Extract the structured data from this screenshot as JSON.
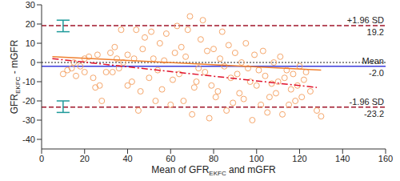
{
  "chart_data": {
    "type": "scatter",
    "xlabel": "Mean of GFREKFC and mGFR",
    "xlabel_parts": {
      "base": "Mean of GFR",
      "sub": "EKFC",
      "rest": " and mGFR"
    },
    "ylabel_parts": {
      "base": "GFR",
      "sub": "EKFC",
      "rest": " - mGFR"
    },
    "x": [
      10,
      12,
      14,
      16,
      18,
      20,
      22,
      24,
      25,
      27,
      28,
      30,
      32,
      34,
      35,
      36,
      38,
      40,
      42,
      44,
      45,
      46,
      47,
      48,
      50,
      52,
      54,
      55,
      56,
      58,
      60,
      62,
      64,
      65,
      66,
      68,
      69,
      70,
      72,
      74,
      75,
      76,
      78,
      80,
      82,
      84,
      85,
      86,
      88,
      90,
      92,
      94,
      95,
      96,
      98,
      100,
      102,
      104,
      106,
      108,
      110,
      112,
      114,
      116,
      118,
      120,
      122,
      125,
      128,
      130,
      15,
      20,
      26,
      33,
      37,
      40,
      43,
      51,
      53,
      57,
      61,
      63,
      67,
      71,
      73,
      77,
      79,
      81,
      83,
      87,
      89,
      91,
      93,
      97,
      99,
      101,
      103,
      105,
      107,
      109,
      111,
      113,
      115,
      117,
      119,
      121,
      123
    ],
    "values": [
      -6,
      -4,
      -3,
      -7,
      -2,
      -5,
      3,
      -8,
      -13,
      -12,
      -20,
      -5,
      5,
      8,
      2,
      -3,
      0,
      4,
      -10,
      17,
      -25,
      -15,
      7,
      13,
      -8,
      2,
      -4,
      10,
      -14,
      15,
      -22,
      5,
      -6,
      8,
      -20,
      17,
      24,
      -27,
      -10,
      12,
      22,
      -5,
      -29,
      7,
      -15,
      16,
      -2,
      -25,
      -8,
      5,
      -16,
      -19,
      10,
      -3,
      -30,
      -12,
      -22,
      -7,
      -18,
      0,
      -10,
      -27,
      -4,
      -14,
      -20,
      -2,
      -9,
      -15,
      -25,
      -28,
      0,
      2,
      4,
      -5,
      17,
      -12,
      2,
      16,
      -20,
      1,
      -9,
      19,
      3,
      -13,
      -3,
      6,
      -12,
      -18,
      2,
      9,
      -21,
      -6,
      0,
      -10,
      4,
      -4,
      6,
      -26,
      -11,
      -16,
      3,
      -8,
      -22,
      -6,
      -12,
      -18,
      -5
    ],
    "color": "#f5a66b",
    "marker": "hollow circle",
    "xlim": [
      0,
      160
    ],
    "xticks": [
      0,
      20,
      40,
      60,
      80,
      100,
      120,
      140,
      160
    ],
    "ylim": [
      -45,
      30
    ],
    "yticks": [
      -40,
      -30,
      -20,
      -10,
      0,
      10,
      20,
      30
    ],
    "reference_lines": [
      {
        "value": 19.2,
        "label": "+1.96 SD",
        "value_label": "19.2",
        "color": "#a0162a",
        "line_style": "dashed"
      },
      {
        "value": 0,
        "color": "#222222",
        "line_style": "dotted"
      },
      {
        "value": -2.0,
        "label": "Mean",
        "value_label": "-2.0",
        "color": "#3a3adc",
        "line_style": "solid"
      },
      {
        "value": -23.2,
        "label": "-1.96 SD",
        "value_label": "-23.2",
        "color": "#a0162a",
        "line_style": "dashed"
      }
    ],
    "fit_lines": [
      {
        "x": [
          5,
          130
        ],
        "values": [
          3,
          -4
        ],
        "color": "#f08030",
        "line_style": "solid"
      },
      {
        "x": [
          5,
          128
        ],
        "values": [
          2,
          -13
        ],
        "color": "#e0102a",
        "line_style": "dashdot"
      }
    ],
    "confidence_intervals": [
      {
        "x": 10,
        "low": 16,
        "high": 22,
        "cap_from": 7,
        "cap_to": 13,
        "color": "#1e9a9a"
      },
      {
        "x": 10,
        "low": -26,
        "high": -20,
        "cap_from": 7,
        "cap_to": 13,
        "color": "#1e9a9a"
      }
    ]
  }
}
